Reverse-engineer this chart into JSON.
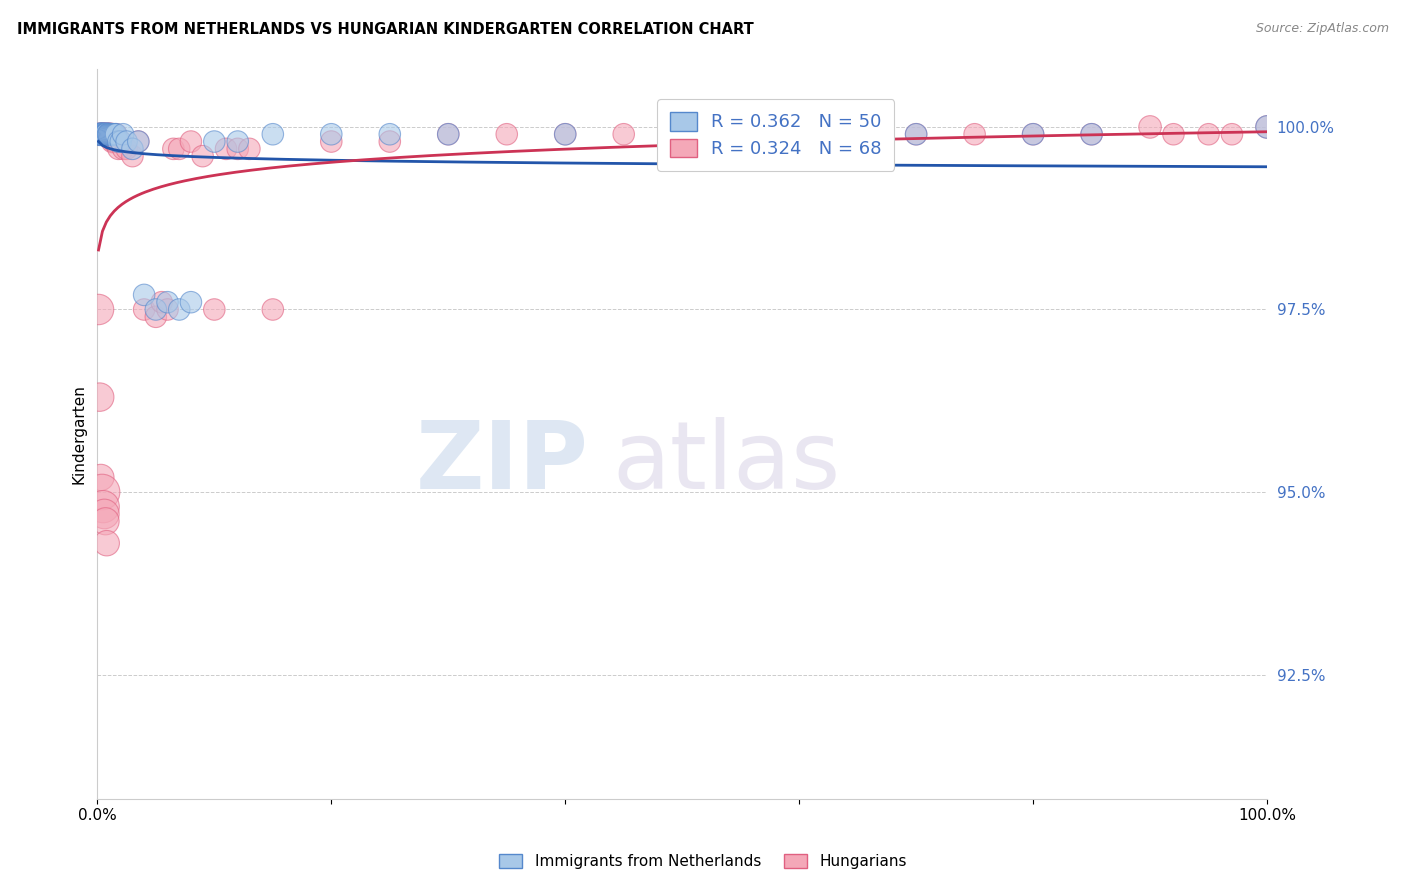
{
  "title": "IMMIGRANTS FROM NETHERLANDS VS HUNGARIAN KINDERGARTEN CORRELATION CHART",
  "source": "Source: ZipAtlas.com",
  "ylabel": "Kindergarten",
  "ylabel_right_ticks": [
    "100.0%",
    "97.5%",
    "95.0%",
    "92.5%"
  ],
  "ylabel_right_values": [
    1.0,
    0.975,
    0.95,
    0.925
  ],
  "xlim": [
    0.0,
    1.0
  ],
  "ylim": [
    0.908,
    1.008
  ],
  "legend_blue_r": "R = 0.362",
  "legend_blue_n": "N = 50",
  "legend_pink_r": "R = 0.324",
  "legend_pink_n": "N = 68",
  "blue_color": "#a8c8e8",
  "pink_color": "#f4a8b8",
  "blue_edge_color": "#5588cc",
  "pink_edge_color": "#e06080",
  "blue_line_color": "#2255aa",
  "pink_line_color": "#cc3355",
  "watermark_zip": "ZIP",
  "watermark_atlas": "atlas",
  "blue_scatter_x": [
    0.001,
    0.002,
    0.002,
    0.003,
    0.003,
    0.003,
    0.004,
    0.004,
    0.004,
    0.005,
    0.005,
    0.005,
    0.006,
    0.006,
    0.007,
    0.007,
    0.008,
    0.009,
    0.01,
    0.01,
    0.011,
    0.012,
    0.013,
    0.014,
    0.015,
    0.016,
    0.018,
    0.02,
    0.022,
    0.025,
    0.03,
    0.035,
    0.04,
    0.05,
    0.06,
    0.07,
    0.08,
    0.1,
    0.12,
    0.15,
    0.2,
    0.25,
    0.3,
    0.4,
    0.5,
    0.6,
    0.7,
    0.8,
    0.85,
    1.0
  ],
  "blue_scatter_y": [
    0.999,
    0.999,
    0.999,
    0.999,
    0.999,
    0.999,
    0.999,
    0.999,
    0.999,
    0.999,
    0.999,
    0.999,
    0.999,
    0.999,
    0.999,
    0.999,
    0.999,
    0.999,
    0.999,
    0.999,
    0.999,
    0.999,
    0.999,
    0.999,
    0.999,
    0.999,
    0.998,
    0.998,
    0.999,
    0.998,
    0.997,
    0.998,
    0.977,
    0.975,
    0.976,
    0.975,
    0.976,
    0.998,
    0.998,
    0.999,
    0.999,
    0.999,
    0.999,
    0.999,
    0.999,
    0.999,
    0.999,
    0.999,
    0.999,
    1.0
  ],
  "blue_scatter_size": [
    20,
    18,
    22,
    20,
    18,
    22,
    20,
    18,
    22,
    20,
    18,
    22,
    20,
    18,
    22,
    20,
    22,
    20,
    22,
    20,
    20,
    20,
    20,
    20,
    20,
    20,
    20,
    20,
    20,
    20,
    20,
    20,
    20,
    20,
    20,
    20,
    20,
    20,
    20,
    20,
    20,
    20,
    20,
    20,
    20,
    20,
    20,
    20,
    20,
    22
  ],
  "pink_scatter_x": [
    0.001,
    0.002,
    0.002,
    0.003,
    0.003,
    0.004,
    0.004,
    0.005,
    0.005,
    0.006,
    0.006,
    0.007,
    0.007,
    0.008,
    0.009,
    0.01,
    0.011,
    0.012,
    0.013,
    0.014,
    0.015,
    0.016,
    0.018,
    0.02,
    0.022,
    0.025,
    0.03,
    0.035,
    0.04,
    0.05,
    0.055,
    0.06,
    0.065,
    0.07,
    0.08,
    0.09,
    0.1,
    0.11,
    0.12,
    0.13,
    0.15,
    0.2,
    0.25,
    0.3,
    0.35,
    0.4,
    0.45,
    0.5,
    0.55,
    0.6,
    0.65,
    0.7,
    0.75,
    0.8,
    0.85,
    0.9,
    0.92,
    0.95,
    0.97,
    1.0,
    0.001,
    0.002,
    0.003,
    0.004,
    0.005,
    0.006,
    0.007,
    0.008
  ],
  "pink_scatter_y": [
    0.999,
    0.999,
    0.999,
    0.999,
    0.999,
    0.999,
    0.999,
    0.999,
    0.999,
    0.999,
    0.999,
    0.999,
    0.999,
    0.999,
    0.999,
    0.999,
    0.999,
    0.999,
    0.998,
    0.998,
    0.998,
    0.999,
    0.997,
    0.998,
    0.997,
    0.997,
    0.996,
    0.998,
    0.975,
    0.974,
    0.976,
    0.975,
    0.997,
    0.997,
    0.998,
    0.996,
    0.975,
    0.997,
    0.997,
    0.997,
    0.975,
    0.998,
    0.998,
    0.999,
    0.999,
    0.999,
    0.999,
    0.999,
    0.999,
    0.999,
    0.999,
    0.999,
    0.999,
    0.999,
    0.999,
    1.0,
    0.999,
    0.999,
    0.999,
    1.0,
    0.975,
    0.963,
    0.952,
    0.95,
    0.948,
    0.947,
    0.946,
    0.943
  ],
  "pink_scatter_size": [
    20,
    18,
    22,
    20,
    18,
    22,
    20,
    18,
    22,
    20,
    18,
    22,
    20,
    18,
    22,
    20,
    22,
    20,
    22,
    20,
    20,
    20,
    20,
    20,
    20,
    20,
    20,
    20,
    20,
    20,
    20,
    20,
    20,
    20,
    20,
    20,
    20,
    20,
    20,
    20,
    20,
    20,
    20,
    20,
    20,
    20,
    20,
    20,
    20,
    20,
    20,
    20,
    20,
    20,
    20,
    22,
    20,
    20,
    20,
    22,
    40,
    35,
    30,
    55,
    45,
    38,
    32,
    28
  ]
}
